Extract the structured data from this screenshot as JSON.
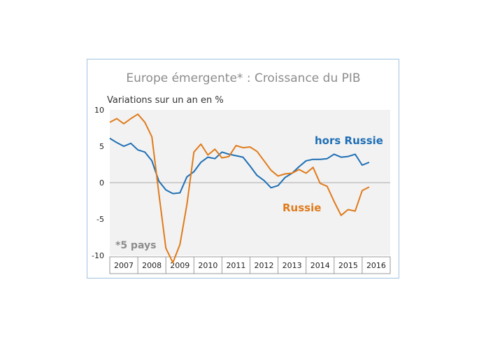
{
  "chart_data": {
    "type": "line",
    "title": "Europe émergente* : Croissance du PIB",
    "subtitle": "Variations sur un an en %",
    "ylim": [
      -10,
      10
    ],
    "yticks": [
      "10",
      "5",
      "0",
      "-5",
      "-10"
    ],
    "year_labels": [
      "2007",
      "2008",
      "2009",
      "2010",
      "2011",
      "2012",
      "2013",
      "2014",
      "2015",
      "2016"
    ],
    "x_start": 2007.0,
    "x_end": 2017.0,
    "note": "*5 pays",
    "colors": {
      "hors_russie": "#1f6fb5",
      "russie": "#e07b1c"
    },
    "series": [
      {
        "name": "hors Russie",
        "x": [
          2007.0,
          2007.25,
          2007.5,
          2007.75,
          2008.0,
          2008.25,
          2008.5,
          2008.75,
          2009.0,
          2009.25,
          2009.5,
          2009.75,
          2010.0,
          2010.25,
          2010.5,
          2010.75,
          2011.0,
          2011.25,
          2011.5,
          2011.75,
          2012.0,
          2012.25,
          2012.5,
          2012.75,
          2013.0,
          2013.25,
          2013.5,
          2013.75,
          2014.0,
          2014.25,
          2014.5,
          2014.75,
          2015.0,
          2015.25,
          2015.5,
          2015.75,
          2016.0,
          2016.25
        ],
        "values": [
          6.1,
          5.5,
          5.0,
          5.4,
          4.5,
          4.2,
          3.0,
          0.2,
          -1.0,
          -1.5,
          -1.4,
          0.8,
          1.5,
          2.8,
          3.5,
          3.3,
          4.2,
          3.9,
          3.7,
          3.5,
          2.3,
          1.0,
          0.3,
          -0.7,
          -0.4,
          0.7,
          1.3,
          2.2,
          3.0,
          3.2,
          3.2,
          3.3,
          3.9,
          3.5,
          3.6,
          3.9,
          2.4,
          2.8
        ]
      },
      {
        "name": "Russie",
        "x": [
          2007.0,
          2007.25,
          2007.5,
          2007.75,
          2008.0,
          2008.25,
          2008.5,
          2008.75,
          2009.0,
          2009.25,
          2009.5,
          2009.75,
          2010.0,
          2010.25,
          2010.5,
          2010.75,
          2011.0,
          2011.25,
          2011.5,
          2011.75,
          2012.0,
          2012.25,
          2012.5,
          2012.75,
          2013.0,
          2013.25,
          2013.5,
          2013.75,
          2014.0,
          2014.25,
          2014.5,
          2014.75,
          2015.0,
          2015.25,
          2015.5,
          2015.75,
          2016.0,
          2016.25
        ],
        "values": [
          8.3,
          8.8,
          8.1,
          8.8,
          9.4,
          8.3,
          6.3,
          -1.5,
          -9.0,
          -11.0,
          -8.5,
          -3.0,
          4.2,
          5.3,
          3.8,
          4.6,
          3.4,
          3.6,
          5.1,
          4.8,
          4.9,
          4.3,
          3.0,
          1.7,
          0.9,
          1.2,
          1.3,
          1.8,
          1.3,
          2.1,
          -0.1,
          -0.5,
          -2.6,
          -4.5,
          -3.7,
          -3.9,
          -1.1,
          -0.6
        ]
      }
    ]
  }
}
